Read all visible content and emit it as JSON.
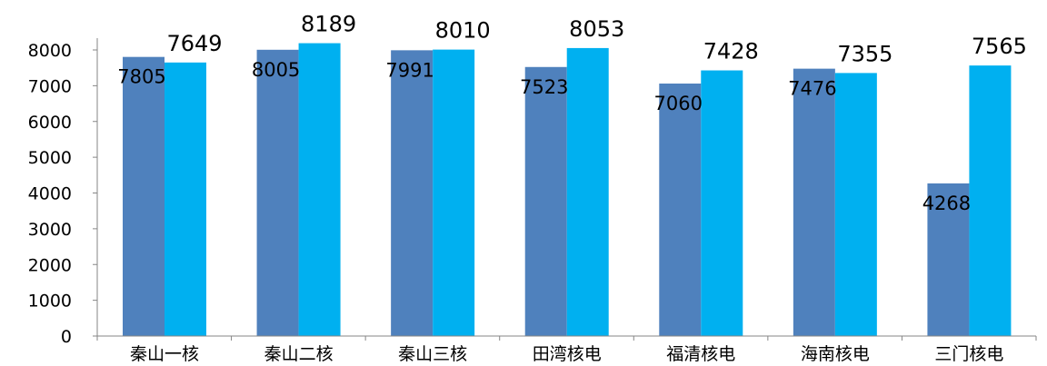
{
  "chart_data": {
    "type": "bar",
    "title": "",
    "xlabel": "",
    "ylabel": "",
    "ylim": [
      0,
      8500
    ],
    "yticks": [
      0,
      1000,
      2000,
      3000,
      4000,
      5000,
      6000,
      7000,
      8000
    ],
    "grid": false,
    "legend": "none",
    "categories": [
      "秦山一核",
      "秦山二核",
      "秦山三核",
      "田湾核电",
      "福清核电",
      "海南核电",
      "三门核电"
    ],
    "series": [
      {
        "values": [
          7805,
          8005,
          7991,
          7523,
          7060,
          7476,
          4268
        ],
        "color": "#4f81bd"
      },
      {
        "values": [
          7649,
          8189,
          8010,
          8053,
          7428,
          7355,
          7565
        ],
        "color": "#00b0f0"
      }
    ]
  }
}
